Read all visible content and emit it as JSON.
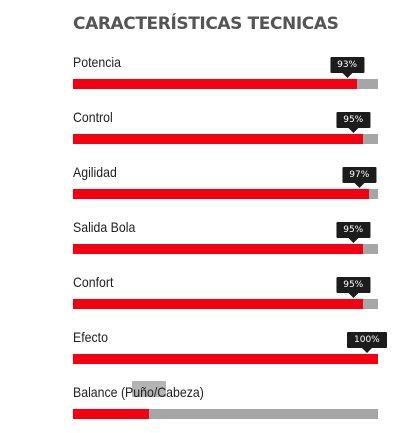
{
  "title": "CARACTERÍSTICAS TECNICAS",
  "colors": {
    "fill": "#f50010",
    "track": "#a6a6a6",
    "tooltip": "#1c1c1c"
  },
  "features": [
    {
      "label": "Potencia",
      "value": 93,
      "value_label": "93%"
    },
    {
      "label": "Control",
      "value": 95,
      "value_label": "95%"
    },
    {
      "label": "Agilidad",
      "value": 97,
      "value_label": "97%"
    },
    {
      "label": "Salida Bola",
      "value": 95,
      "value_label": "95%"
    },
    {
      "label": "Confort",
      "value": 95,
      "value_label": "95%"
    },
    {
      "label": "Efecto",
      "value": 100,
      "value_label": "100%"
    },
    {
      "label": "Balance (Puño/Cabeza)",
      "value": 25
    }
  ]
}
